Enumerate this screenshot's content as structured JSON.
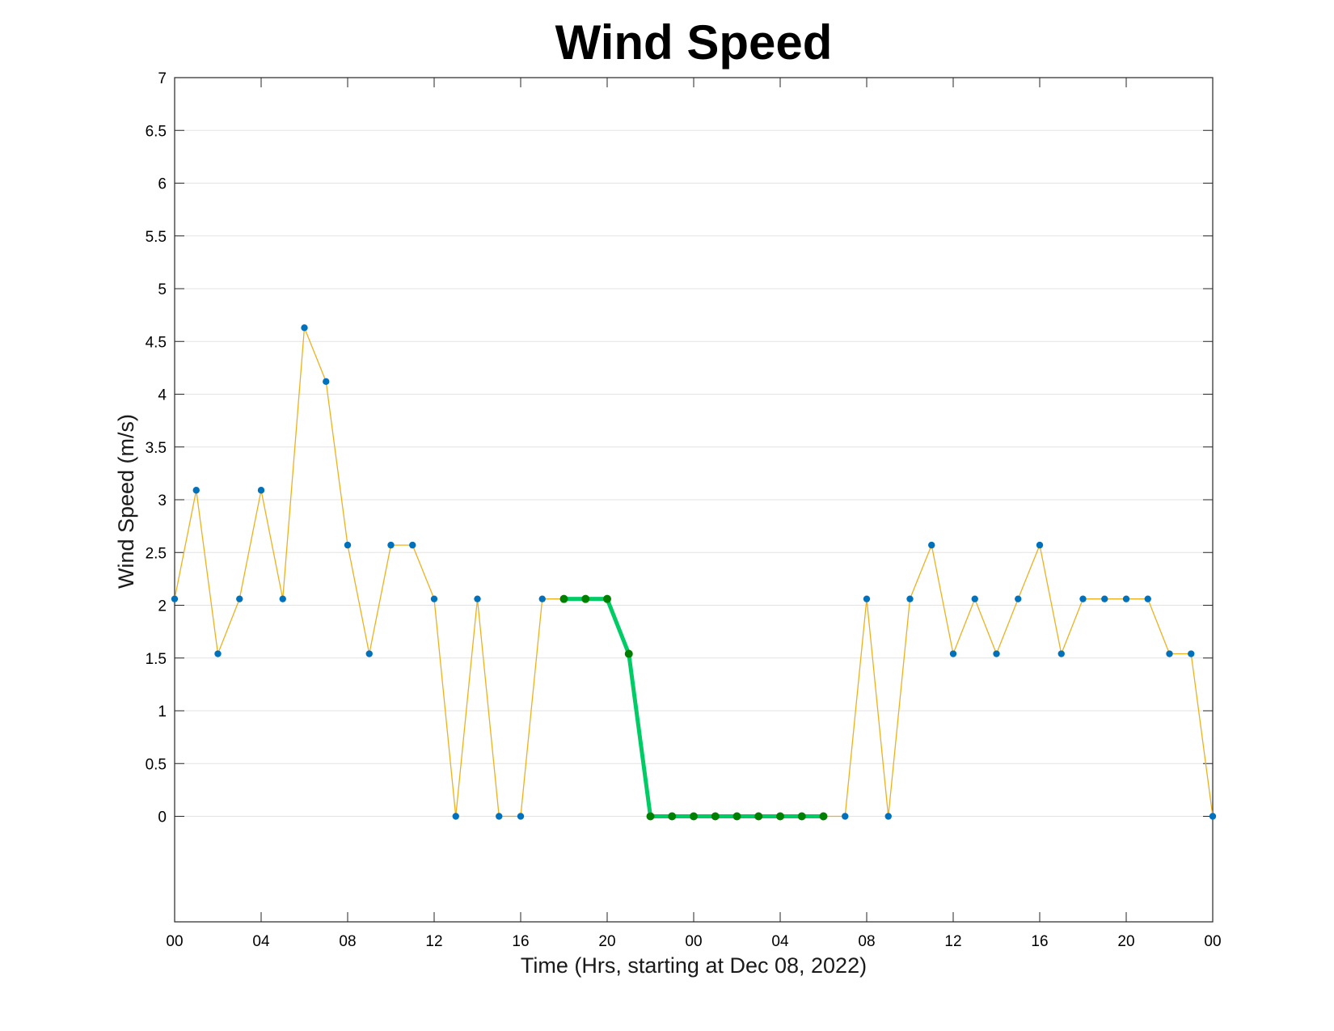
{
  "chart_data": {
    "type": "line",
    "title": "Wind Speed",
    "xlabel": "Time (Hrs, starting at Dec 08, 2022)",
    "ylabel": "Wind Speed (m/s)",
    "xlim": [
      0,
      48
    ],
    "ylim": [
      -1,
      7
    ],
    "x_unit": "hours",
    "x_ticks": [
      {
        "value": 0,
        "label": "00"
      },
      {
        "value": 4,
        "label": "04"
      },
      {
        "value": 8,
        "label": "08"
      },
      {
        "value": 12,
        "label": "12"
      },
      {
        "value": 16,
        "label": "16"
      },
      {
        "value": 20,
        "label": "20"
      },
      {
        "value": 24,
        "label": "00"
      },
      {
        "value": 28,
        "label": "04"
      },
      {
        "value": 32,
        "label": "08"
      },
      {
        "value": 36,
        "label": "12"
      },
      {
        "value": 40,
        "label": "16"
      },
      {
        "value": 44,
        "label": "20"
      },
      {
        "value": 48,
        "label": "00"
      }
    ],
    "y_ticks": [
      {
        "value": 0,
        "label": "0"
      },
      {
        "value": 0.5,
        "label": "0.5"
      },
      {
        "value": 1,
        "label": "1"
      },
      {
        "value": 1.5,
        "label": "1.5"
      },
      {
        "value": 2,
        "label": "2"
      },
      {
        "value": 2.5,
        "label": "2.5"
      },
      {
        "value": 3,
        "label": "3"
      },
      {
        "value": 3.5,
        "label": "3.5"
      },
      {
        "value": 4,
        "label": "4"
      },
      {
        "value": 4.5,
        "label": "4.5"
      },
      {
        "value": 5,
        "label": "5"
      },
      {
        "value": 5.5,
        "label": "5.5"
      },
      {
        "value": 6,
        "label": "6"
      },
      {
        "value": 6.5,
        "label": "6.5"
      },
      {
        "value": 7,
        "label": "7"
      }
    ],
    "grid": "horizontal",
    "series": [
      {
        "line_color": "#EDB120",
        "marker_color": "#0072BD",
        "x": [
          0,
          1,
          2,
          3,
          4,
          5,
          6,
          7,
          8,
          9,
          10,
          11,
          12,
          13,
          14,
          15,
          16,
          17,
          18,
          19,
          20,
          21,
          22,
          23,
          24,
          25,
          26,
          27,
          28,
          29,
          30,
          31,
          32,
          33,
          34,
          35,
          36,
          37,
          38,
          39,
          40,
          41,
          42,
          43,
          44,
          45,
          46,
          47,
          48
        ],
        "y": [
          2.06,
          3.09,
          1.54,
          2.06,
          3.09,
          2.06,
          4.63,
          4.12,
          2.57,
          1.54,
          2.57,
          2.57,
          2.06,
          0,
          2.06,
          0,
          0,
          2.06,
          2.06,
          2.06,
          2.06,
          1.54,
          0,
          0,
          0,
          0,
          0,
          0,
          0,
          0,
          0,
          0,
          2.06,
          0,
          2.06,
          2.57,
          1.54,
          2.06,
          1.54,
          2.06,
          2.57,
          1.54,
          2.06,
          2.06,
          2.06,
          2.06,
          1.54,
          1.54,
          0
        ]
      },
      {
        "line_color": "#00CC66",
        "marker_color": "#008000",
        "highlight": true,
        "x": [
          18,
          19,
          20,
          21,
          22,
          23,
          24,
          25,
          26,
          27,
          28,
          29,
          30
        ],
        "y": [
          2.06,
          2.06,
          2.06,
          1.54,
          0,
          0,
          0,
          0,
          0,
          0,
          0,
          0,
          0
        ]
      }
    ]
  }
}
